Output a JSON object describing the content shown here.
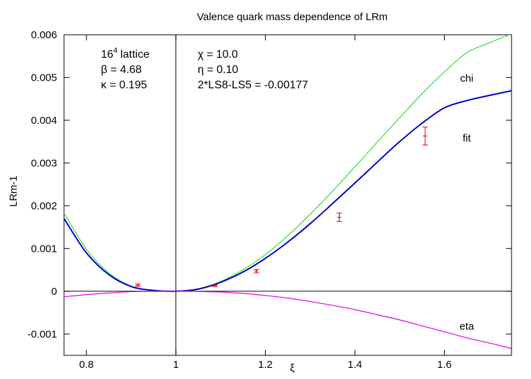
{
  "chart_data": {
    "type": "line",
    "title": "Valence quark mass dependence of LRm",
    "xlabel": "ξ",
    "ylabel": "LRm-1",
    "xlim": [
      0.75,
      1.75
    ],
    "ylim": [
      -0.0015,
      0.006
    ],
    "grid": false,
    "legend": "inline labels near curve ends",
    "x_ticks": [
      {
        "value": 0.8,
        "label": "0.8"
      },
      {
        "value": 1.0,
        "label": "1"
      },
      {
        "value": 1.2,
        "label": "1.2"
      },
      {
        "value": 1.4,
        "label": "1.4"
      },
      {
        "value": 1.6,
        "label": "1.6"
      }
    ],
    "y_ticks": [
      {
        "value": -0.001,
        "label": "-0.001"
      },
      {
        "value": 0,
        "label": "0"
      },
      {
        "value": 0.001,
        "label": "0.001"
      },
      {
        "value": 0.002,
        "label": "0.002"
      },
      {
        "value": 0.003,
        "label": "0.003"
      },
      {
        "value": 0.004,
        "label": "0.004"
      },
      {
        "value": 0.005,
        "label": "0.005"
      },
      {
        "value": 0.006,
        "label": "0.006"
      }
    ],
    "reference_lines": {
      "x": 1.0,
      "y": 0
    },
    "annotations_left": {
      "lattice_size": "16",
      "lattice_exp": "4",
      "lattice_word": "lattice",
      "beta": "β = 4.68",
      "kappa": "κ = 0.195"
    },
    "annotations_right": {
      "chi": "χ = 10.0",
      "eta": "η = 0.10",
      "ls": "2*LS8-LS5 = -0.00177"
    },
    "series": [
      {
        "name": "chi",
        "color": "#33dd33",
        "x": [
          0.75,
          0.8,
          0.85,
          0.9,
          0.95,
          1.0,
          1.05,
          1.1,
          1.15,
          1.2,
          1.25,
          1.3,
          1.35,
          1.4,
          1.45,
          1.5,
          1.55,
          1.6,
          1.65,
          1.7,
          1.75
        ],
        "y": [
          0.00183,
          0.00098,
          0.00043,
          0.00012,
          2e-05,
          0.0,
          6e-05,
          0.00023,
          0.0005,
          0.00086,
          0.0013,
          0.0018,
          0.00234,
          0.00291,
          0.00349,
          0.00406,
          0.00462,
          0.00513,
          0.00558,
          0.00581,
          0.00602
        ]
      },
      {
        "name": "fit",
        "color": "#0000cc",
        "x": [
          0.75,
          0.8,
          0.85,
          0.9,
          0.95,
          1.0,
          1.05,
          1.1,
          1.15,
          1.2,
          1.25,
          1.3,
          1.35,
          1.4,
          1.45,
          1.5,
          1.55,
          1.6,
          1.65,
          1.7,
          1.75
        ],
        "y": [
          0.0017,
          0.0009,
          0.00039,
          0.00011,
          2e-05,
          0.0,
          5e-05,
          0.00021,
          0.00045,
          0.00077,
          0.00115,
          0.00158,
          0.00205,
          0.00253,
          0.00302,
          0.0035,
          0.00393,
          0.00429,
          0.00446,
          0.00458,
          0.00469
        ]
      },
      {
        "name": "eta",
        "color": "#dd00dd",
        "x": [
          0.75,
          0.8,
          0.85,
          0.9,
          0.95,
          1.0,
          1.05,
          1.1,
          1.15,
          1.2,
          1.25,
          1.3,
          1.35,
          1.4,
          1.45,
          1.5,
          1.55,
          1.6,
          1.65,
          1.7,
          1.75
        ],
        "y": [
          -0.00013,
          -8e-05,
          -4e-05,
          -1e-05,
          -3e-06,
          0.0,
          -5e-06,
          -2e-05,
          -5e-05,
          -0.0001,
          -0.00016,
          -0.00024,
          -0.00033,
          -0.00043,
          -0.00055,
          -0.00067,
          -0.00081,
          -0.00095,
          -0.00109,
          -0.00121,
          -0.00134
        ]
      }
    ],
    "data_points": {
      "color": "#dd0000",
      "points": [
        {
          "x": 0.915,
          "y": 0.00014,
          "err": 3e-05
        },
        {
          "x": 1.087,
          "y": 0.00013,
          "err": 2e-05
        },
        {
          "x": 1.18,
          "y": 0.00047,
          "err": 4e-05
        },
        {
          "x": 1.365,
          "y": 0.00173,
          "err": 0.0001
        },
        {
          "x": 1.557,
          "y": 0.00363,
          "err": 0.00021
        }
      ]
    },
    "series_labels": {
      "chi": {
        "text": "chi",
        "x": 1.65,
        "y": 0.0049
      },
      "fit": {
        "text": "fit",
        "x": 1.65,
        "y": 0.0035
      },
      "eta": {
        "text": "eta",
        "x": 1.65,
        "y": -0.0009
      }
    }
  }
}
